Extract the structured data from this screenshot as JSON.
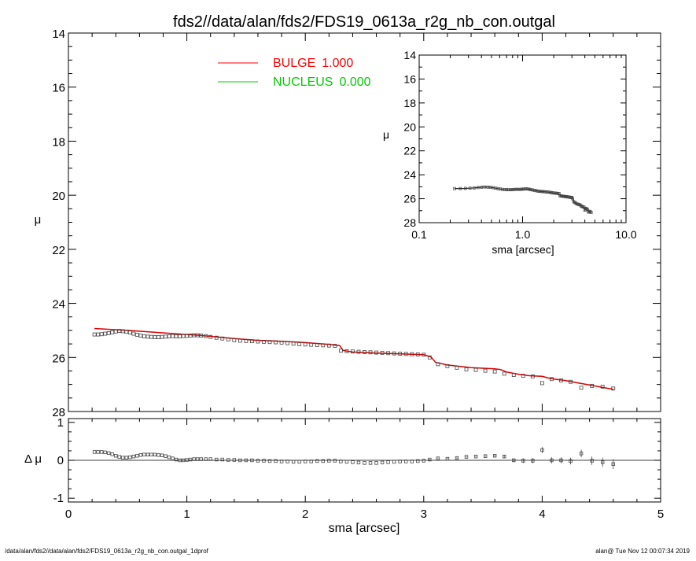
{
  "figure": {
    "title": "fds2//data/alan/fds2/FDS19_0613a_r2g_nb_con.outgal",
    "footer_left": "/data/alan/fds2//data/alan/fds2/FDS19_0613a_r2g_nb_con.outgal_1dprof",
    "footer_right": "alan@  Tue Nov 12 00:07:34 2019"
  },
  "colors": {
    "model": "#dd0000",
    "bulge_text": "#ff0000",
    "nucleus": "#00cc00",
    "data": "#444444",
    "axis": "#000000"
  },
  "legend": [
    {
      "name": "BULGE",
      "value": "1.000",
      "color": "#ff0000"
    },
    {
      "name": "NUCLEUS",
      "value": "0.000",
      "color": "#00cc00"
    }
  ],
  "chart_data": [
    {
      "type": "scatter",
      "panel": "main",
      "xlabel": "",
      "ylabel": "μ",
      "xlim": [
        0,
        5
      ],
      "ylim": [
        28,
        14
      ],
      "y_inverted": true,
      "xticks": [
        0,
        1,
        2,
        3,
        4,
        5
      ],
      "yticks": [
        14,
        16,
        18,
        20,
        22,
        24,
        26,
        28
      ],
      "ytick_labels": [
        "14",
        "16",
        "18",
        "20",
        "22",
        "24",
        "26",
        "28"
      ],
      "series": [
        {
          "name": "data",
          "style": "squares",
          "x": [
            0.22,
            0.25,
            0.28,
            0.31,
            0.34,
            0.37,
            0.4,
            0.43,
            0.46,
            0.49,
            0.52,
            0.55,
            0.58,
            0.61,
            0.64,
            0.67,
            0.7,
            0.73,
            0.76,
            0.79,
            0.82,
            0.85,
            0.88,
            0.91,
            0.94,
            0.97,
            1.0,
            1.03,
            1.06,
            1.09,
            1.12,
            1.16,
            1.2,
            1.25,
            1.3,
            1.35,
            1.4,
            1.45,
            1.5,
            1.55,
            1.6,
            1.65,
            1.7,
            1.75,
            1.8,
            1.85,
            1.9,
            1.95,
            2.0,
            2.05,
            2.1,
            2.15,
            2.2,
            2.25,
            2.3,
            2.35,
            2.4,
            2.45,
            2.5,
            2.55,
            2.6,
            2.65,
            2.7,
            2.75,
            2.8,
            2.85,
            2.9,
            2.95,
            3.0,
            3.05,
            3.12,
            3.2,
            3.28,
            3.36,
            3.44,
            3.52,
            3.6,
            3.68,
            3.76,
            3.84,
            3.92,
            4.0,
            4.08,
            4.16,
            4.24,
            4.33,
            4.42,
            4.51,
            4.6
          ],
          "y": [
            25.15,
            25.15,
            25.14,
            25.12,
            25.1,
            25.07,
            25.04,
            25.02,
            25.03,
            25.05,
            25.08,
            25.12,
            25.16,
            25.19,
            25.22,
            25.23,
            25.24,
            25.25,
            25.25,
            25.24,
            25.23,
            25.22,
            25.21,
            25.22,
            25.22,
            25.21,
            25.2,
            25.19,
            25.18,
            25.18,
            25.19,
            25.21,
            25.24,
            25.27,
            25.3,
            25.33,
            25.36,
            25.38,
            25.39,
            25.4,
            25.41,
            25.42,
            25.43,
            25.44,
            25.45,
            25.47,
            25.49,
            25.51,
            25.52,
            25.53,
            25.54,
            25.55,
            25.56,
            25.57,
            25.75,
            25.77,
            25.78,
            25.79,
            25.8,
            25.81,
            25.82,
            25.83,
            25.84,
            25.85,
            25.86,
            25.87,
            25.88,
            25.89,
            25.9,
            26.0,
            26.25,
            26.32,
            26.38,
            26.44,
            26.46,
            26.49,
            26.52,
            26.6,
            26.65,
            26.68,
            26.7,
            26.95,
            26.8,
            26.85,
            26.9,
            27.12,
            27.05,
            27.08,
            27.15
          ]
        },
        {
          "name": "model",
          "style": "line",
          "x": [
            0.22,
            0.35,
            0.5,
            0.7,
            0.9,
            1.1,
            1.2,
            1.4,
            1.6,
            1.8,
            2.0,
            2.2,
            2.29,
            2.32,
            2.4,
            2.6,
            2.8,
            3.0,
            3.06,
            3.1,
            3.2,
            3.4,
            3.6,
            3.65,
            3.7,
            3.8,
            3.9,
            4.0,
            4.05,
            4.1,
            4.2,
            4.3,
            4.4,
            4.5,
            4.6
          ],
          "y": [
            24.93,
            24.96,
            25.0,
            25.06,
            25.12,
            25.18,
            25.22,
            25.3,
            25.37,
            25.4,
            25.45,
            25.52,
            25.56,
            25.74,
            25.8,
            25.84,
            25.87,
            25.9,
            25.98,
            26.18,
            26.28,
            26.38,
            26.42,
            26.45,
            26.54,
            26.62,
            26.68,
            26.7,
            26.76,
            26.8,
            26.86,
            26.94,
            27.02,
            27.1,
            27.18
          ]
        }
      ]
    },
    {
      "type": "scatter",
      "panel": "residual",
      "xlabel": "sma [arcsec]",
      "ylabel": "Δ μ",
      "xlim": [
        0,
        5
      ],
      "ylim": [
        -1.1,
        1.1
      ],
      "xticks": [
        0,
        1,
        2,
        3,
        4,
        5
      ],
      "xtick_labels": [
        "0",
        "1",
        "2",
        "3",
        "4",
        "5"
      ],
      "yticks": [
        1,
        0,
        -1
      ],
      "ytick_labels": [
        "1",
        "0",
        "-1"
      ],
      "x": [
        0.22,
        0.25,
        0.28,
        0.31,
        0.34,
        0.37,
        0.4,
        0.43,
        0.46,
        0.49,
        0.52,
        0.55,
        0.58,
        0.61,
        0.64,
        0.67,
        0.7,
        0.73,
        0.76,
        0.79,
        0.82,
        0.85,
        0.88,
        0.91,
        0.94,
        0.97,
        1.0,
        1.03,
        1.06,
        1.09,
        1.12,
        1.16,
        1.2,
        1.25,
        1.3,
        1.35,
        1.4,
        1.45,
        1.5,
        1.55,
        1.6,
        1.65,
        1.7,
        1.75,
        1.8,
        1.85,
        1.9,
        1.95,
        2.0,
        2.05,
        2.1,
        2.15,
        2.2,
        2.25,
        2.3,
        2.35,
        2.4,
        2.45,
        2.5,
        2.55,
        2.6,
        2.65,
        2.7,
        2.75,
        2.8,
        2.85,
        2.9,
        2.95,
        3.0,
        3.05,
        3.12,
        3.2,
        3.28,
        3.36,
        3.44,
        3.52,
        3.6,
        3.68,
        3.76,
        3.84,
        3.92,
        4.0,
        4.08,
        4.16,
        4.24,
        4.33,
        4.42,
        4.51,
        4.6
      ],
      "y": [
        0.22,
        0.22,
        0.22,
        0.21,
        0.19,
        0.16,
        0.12,
        0.09,
        0.07,
        0.07,
        0.08,
        0.1,
        0.12,
        0.14,
        0.15,
        0.15,
        0.15,
        0.15,
        0.14,
        0.13,
        0.11,
        0.08,
        0.05,
        0.02,
        0.0,
        0.0,
        0.01,
        0.02,
        0.03,
        0.03,
        0.03,
        0.03,
        0.03,
        0.02,
        0.02,
        0.01,
        0.01,
        0.0,
        0.0,
        0.0,
        -0.01,
        -0.01,
        -0.02,
        -0.02,
        -0.03,
        -0.03,
        -0.04,
        -0.04,
        -0.03,
        -0.03,
        -0.02,
        -0.02,
        -0.01,
        -0.01,
        -0.03,
        -0.04,
        -0.05,
        -0.06,
        -0.07,
        -0.07,
        -0.07,
        -0.06,
        -0.05,
        -0.04,
        -0.03,
        -0.03,
        -0.03,
        -0.02,
        -0.01,
        0.02,
        0.05,
        0.04,
        0.06,
        0.09,
        0.1,
        0.11,
        0.12,
        0.1,
        0.0,
        -0.01,
        -0.01,
        0.27,
        0.0,
        0.0,
        -0.02,
        0.18,
        -0.01,
        -0.05,
        -0.1
      ],
      "err": [
        0.01,
        0.01,
        0.01,
        0.01,
        0.01,
        0.01,
        0.01,
        0.01,
        0.01,
        0.01,
        0.01,
        0.01,
        0.01,
        0.01,
        0.01,
        0.01,
        0.01,
        0.01,
        0.01,
        0.01,
        0.01,
        0.01,
        0.01,
        0.01,
        0.01,
        0.01,
        0.01,
        0.01,
        0.01,
        0.01,
        0.01,
        0.01,
        0.01,
        0.01,
        0.01,
        0.01,
        0.01,
        0.01,
        0.01,
        0.01,
        0.01,
        0.01,
        0.01,
        0.01,
        0.01,
        0.01,
        0.01,
        0.01,
        0.01,
        0.01,
        0.01,
        0.01,
        0.01,
        0.01,
        0.01,
        0.01,
        0.01,
        0.01,
        0.01,
        0.01,
        0.01,
        0.01,
        0.01,
        0.01,
        0.01,
        0.01,
        0.01,
        0.01,
        0.01,
        0.02,
        0.02,
        0.02,
        0.02,
        0.02,
        0.02,
        0.02,
        0.03,
        0.04,
        0.05,
        0.06,
        0.07,
        0.08,
        0.08,
        0.08,
        0.09,
        0.1,
        0.11,
        0.12,
        0.13
      ]
    },
    {
      "type": "scatter",
      "panel": "inset",
      "xlabel": "sma [arcsec]",
      "ylabel": "μ",
      "xscale": "log",
      "xlim": [
        0.1,
        10
      ],
      "ylim": [
        28,
        14
      ],
      "xticks": [
        0.1,
        1.0,
        10.0
      ],
      "xtick_labels": [
        "0.1",
        "1.0",
        "10.0"
      ],
      "yticks": [
        14,
        16,
        18,
        20,
        22,
        24,
        26,
        28
      ],
      "ytick_labels": [
        "14",
        "16",
        "18",
        "20",
        "22",
        "24",
        "26",
        "28"
      ]
    }
  ]
}
